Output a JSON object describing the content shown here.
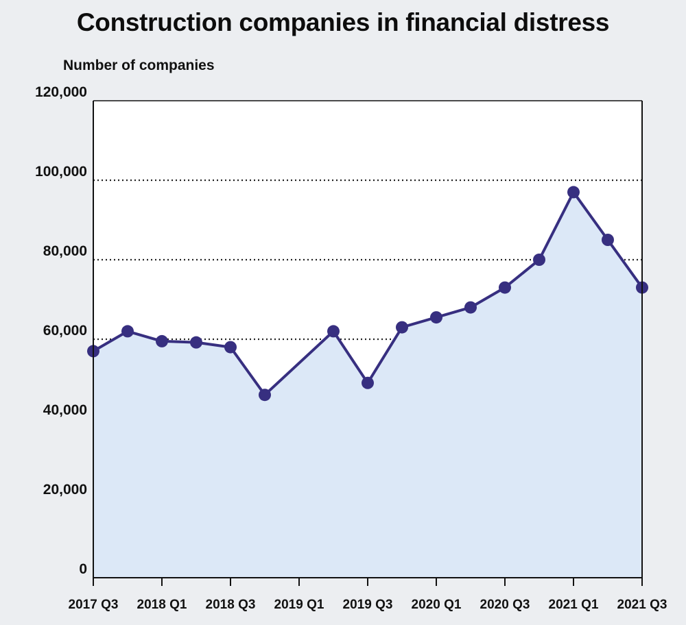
{
  "title": "Construction companies in financial distress",
  "ylabel": "Number of companies",
  "colors": {
    "background": "#eceef1",
    "plot_background": "#ffffff",
    "area_fill": "#dce8f7",
    "line": "#372f80",
    "marker": "#372f80",
    "grid": "#222222"
  },
  "chart_data": {
    "type": "area",
    "title": "Construction companies in financial distress",
    "ylabel": "Number of companies",
    "xlabel": "",
    "ylim": [
      0,
      120000
    ],
    "yticks": [
      "0",
      "20,000",
      "40,000",
      "60,000",
      "80,000",
      "100,000",
      "120,000"
    ],
    "ytick_values": [
      0,
      20000,
      40000,
      60000,
      80000,
      100000,
      120000
    ],
    "grid": "horizontal dotted",
    "x": [
      "2017 Q3",
      "2017 Q4",
      "2018 Q1",
      "2018 Q2",
      "2018 Q3",
      "2018 Q4",
      "2019 Q1",
      "2019 Q2",
      "2019 Q3",
      "2019 Q4",
      "2020 Q1",
      "2020 Q2",
      "2020 Q3",
      "2020 Q4",
      "2021 Q1",
      "2021 Q2",
      "2021 Q3"
    ],
    "xtick_labels": [
      "2017 Q3",
      "2018 Q1",
      "2018 Q3",
      "2019 Q1",
      "2019 Q3",
      "2020 Q1",
      "2020 Q3",
      "2021 Q1",
      "2021 Q3"
    ],
    "values": [
      57000,
      62000,
      59500,
      59200,
      58000,
      46000,
      null,
      62000,
      49000,
      63000,
      65500,
      68000,
      73000,
      80000,
      97000,
      85000,
      73000
    ]
  }
}
